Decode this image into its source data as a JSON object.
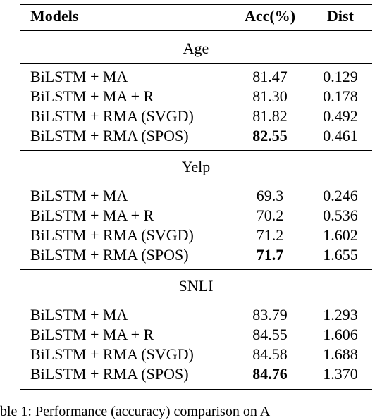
{
  "table": {
    "headers": {
      "models": "Models",
      "acc": "Acc(%)",
      "dist": "Dist"
    },
    "sections": [
      {
        "label": "Age",
        "rows": [
          {
            "model": "BiLSTM + MA",
            "acc": "81.47",
            "dist": "0.129",
            "best": false
          },
          {
            "model": "BiLSTM + MA + R",
            "acc": "81.30",
            "dist": "0.178",
            "best": false
          },
          {
            "model": "BiLSTM + RMA (SVGD)",
            "acc": "81.82",
            "dist": "0.492",
            "best": false
          },
          {
            "model": "BiLSTM + RMA (SPOS)",
            "acc": "82.55",
            "dist": "0.461",
            "best": true
          }
        ]
      },
      {
        "label": "Yelp",
        "rows": [
          {
            "model": "BiLSTM + MA",
            "acc": "69.3",
            "dist": "0.246",
            "best": false
          },
          {
            "model": "BiLSTM + MA + R",
            "acc": "70.2",
            "dist": "0.536",
            "best": false
          },
          {
            "model": "BiLSTM + RMA (SVGD)",
            "acc": "71.2",
            "dist": "1.602",
            "best": false
          },
          {
            "model": "BiLSTM + RMA (SPOS)",
            "acc": "71.7",
            "dist": "1.655",
            "best": true
          }
        ]
      },
      {
        "label": "SNLI",
        "rows": [
          {
            "model": "BiLSTM + MA",
            "acc": "83.79",
            "dist": "1.293",
            "best": false
          },
          {
            "model": "BiLSTM + MA + R",
            "acc": "84.55",
            "dist": "1.606",
            "best": false
          },
          {
            "model": "BiLSTM + RMA (SVGD)",
            "acc": "84.58",
            "dist": "1.688",
            "best": false
          },
          {
            "model": "BiLSTM + RMA (SPOS)",
            "acc": "84.76",
            "dist": "1.370",
            "best": true
          }
        ]
      }
    ]
  },
  "caption": "ble 1: Performance (accuracy) comparison on A"
}
